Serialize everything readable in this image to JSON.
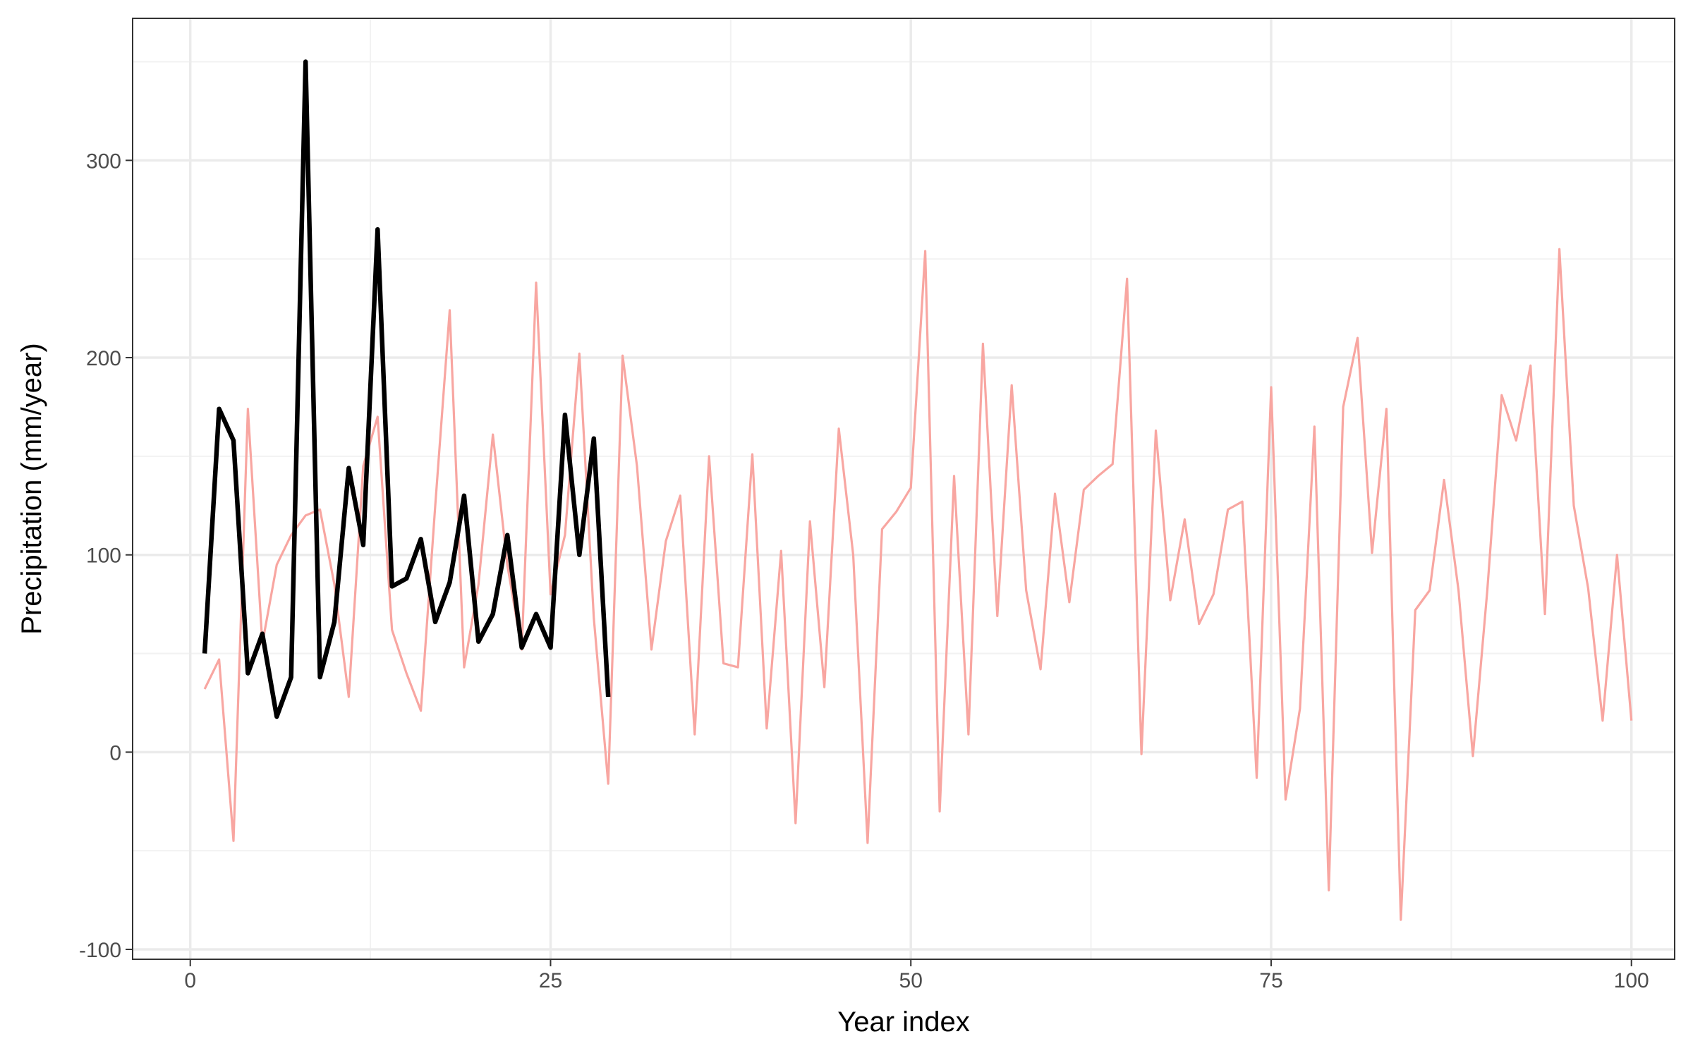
{
  "chart_data": {
    "type": "line",
    "title": "",
    "xlabel": "Year index",
    "ylabel": "Precipitation (mm/year)",
    "xlim": [
      -4,
      103
    ],
    "ylim": [
      -105,
      372
    ],
    "x_ticks": [
      0,
      25,
      50,
      75,
      100
    ],
    "x_tick_labels": [
      "0",
      "25",
      "50",
      "75",
      "100"
    ],
    "y_ticks": [
      -100,
      0,
      100,
      200,
      300
    ],
    "y_tick_labels": [
      "-100",
      "0",
      "100",
      "200",
      "300"
    ],
    "grid": true,
    "legend": "none",
    "colors": {
      "panel_border": "#333333",
      "grid_major": "#ebebeb",
      "grid_minor": "#f2f2f2"
    },
    "series": [
      {
        "color": "#f8a6a1",
        "line_width": "thin",
        "x": [
          1,
          2,
          3,
          4,
          5,
          6,
          7,
          8,
          9,
          10,
          11,
          12,
          13,
          14,
          15,
          16,
          17,
          18,
          19,
          20,
          21,
          22,
          23,
          24,
          25,
          26,
          27,
          28,
          29,
          30,
          31,
          32,
          33,
          34,
          35,
          36,
          37,
          38,
          39,
          40,
          41,
          42,
          43,
          44,
          45,
          46,
          47,
          48,
          49,
          50,
          51,
          52,
          53,
          54,
          55,
          56,
          57,
          58,
          59,
          60,
          61,
          62,
          63,
          64,
          65,
          66,
          67,
          68,
          69,
          70,
          71,
          72,
          73,
          74,
          75,
          76,
          77,
          78,
          79,
          80,
          81,
          82,
          83,
          84,
          85,
          86,
          87,
          88,
          89,
          90,
          91,
          92,
          93,
          94,
          95,
          96,
          97,
          98,
          99,
          100
        ],
        "values": [
          32,
          47,
          -45,
          174,
          55,
          95,
          110,
          120,
          123,
          85,
          28,
          145,
          170,
          62,
          40,
          21,
          125,
          224,
          43,
          85,
          161,
          95,
          52,
          238,
          80,
          110,
          202,
          68,
          -16,
          201,
          145,
          52,
          107,
          130,
          9,
          150,
          45,
          43,
          151,
          12,
          102,
          -36,
          117,
          33,
          164,
          100,
          -46,
          113,
          122,
          134,
          254,
          -30,
          140,
          9,
          207,
          69,
          186,
          82,
          42,
          131,
          76,
          133,
          140,
          146,
          240,
          -1,
          163,
          77,
          118,
          65,
          80,
          123,
          127,
          -13,
          185,
          -24,
          22,
          165,
          -70,
          175,
          210,
          101,
          174,
          -85,
          72,
          82,
          138,
          82,
          -2,
          82,
          181,
          158,
          196,
          70,
          255,
          125,
          83,
          16,
          100,
          16
        ]
      },
      {
        "color": "#000000",
        "line_width": "thick",
        "x": [
          1,
          2,
          3,
          4,
          5,
          6,
          7,
          8,
          9,
          10,
          11,
          12,
          13,
          14,
          15,
          16,
          17,
          18,
          19,
          20,
          21,
          22,
          23,
          24,
          25,
          26,
          27,
          28,
          29
        ],
        "values": [
          50,
          174,
          158,
          40,
          60,
          18,
          38,
          350,
          38,
          66,
          144,
          105,
          265,
          84,
          88,
          108,
          66,
          86,
          130,
          56,
          70,
          110,
          53,
          70,
          53,
          171,
          100,
          159,
          28
        ]
      }
    ]
  }
}
